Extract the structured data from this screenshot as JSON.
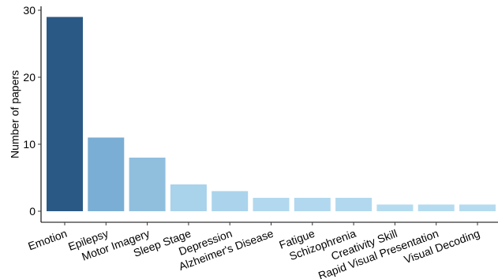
{
  "chart_data": {
    "type": "bar",
    "title": "",
    "xlabel": "",
    "ylabel": "Number of papers",
    "ylim": [
      0,
      30
    ],
    "yticks": [
      0,
      10,
      20,
      30
    ],
    "grid": false,
    "legend": "none",
    "categories": [
      "Emotion",
      "Epilepsy",
      "Motor Imagery",
      "Sleep Stage",
      "Depression",
      "Alzheimer's Disease",
      "Fatigue",
      "Schizophrenia",
      "Creativity Skill",
      "Rapid Visual Presentation",
      "Visual Decoding"
    ],
    "values": [
      29,
      11,
      8,
      4,
      3,
      2,
      2,
      2,
      1,
      1,
      1
    ],
    "colors": [
      "#2B5986",
      "#7BAED4",
      "#90BFDE",
      "#A9D2EB",
      "#ABD3EC",
      "#B1D8EE",
      "#B1D8EE",
      "#B1D8EE",
      "#B5DBF0",
      "#B5DBF0",
      "#B5DBF0"
    ]
  }
}
